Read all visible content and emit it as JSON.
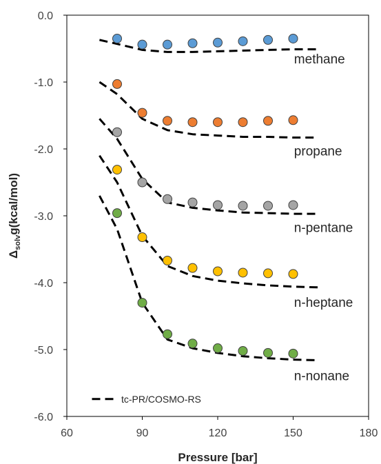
{
  "chart_data": {
    "type": "scatter",
    "xlabel": "Pressure [bar]",
    "ylabel": {
      "main": "Δ",
      "sub": "solv",
      "rest": "g(kcal/mol)"
    },
    "xlim": [
      60,
      180
    ],
    "ylim": [
      -6.0,
      0.0
    ],
    "x_ticks": [
      60,
      90,
      120,
      150,
      180
    ],
    "y_ticks": [
      0.0,
      -1.0,
      -2.0,
      -3.0,
      -4.0,
      -5.0,
      -6.0
    ],
    "x_tick_labels": [
      "60",
      "90",
      "120",
      "150",
      "180"
    ],
    "y_tick_labels": [
      "0.0",
      "-1.0",
      "-2.0",
      "-3.0",
      "-4.0",
      "-5.0",
      "-6.0"
    ],
    "grid": false,
    "legend": {
      "placement": "bottom-left",
      "entries": [
        {
          "label": "tc-PR/COSMO-RS",
          "style": "dashed-line"
        }
      ]
    },
    "model_line_color": "#000000",
    "marker_edge_color": "#404040",
    "series": [
      {
        "name": "methane",
        "color": "#5B9BD5",
        "points": {
          "x": [
            80,
            90,
            100,
            110,
            120,
            130,
            140,
            150
          ],
          "y": [
            -0.35,
            -0.44,
            -0.44,
            -0.42,
            -0.41,
            -0.39,
            -0.37,
            -0.35
          ]
        },
        "model": {
          "x": [
            73,
            80,
            90,
            100,
            110,
            120,
            130,
            140,
            150,
            160
          ],
          "y": [
            -0.37,
            -0.43,
            -0.52,
            -0.55,
            -0.55,
            -0.54,
            -0.53,
            -0.52,
            -0.51,
            -0.51
          ]
        }
      },
      {
        "name": "propane",
        "color": "#ED7D31",
        "points": {
          "x": [
            80,
            90,
            100,
            110,
            120,
            130,
            140,
            150
          ],
          "y": [
            -1.03,
            -1.46,
            -1.58,
            -1.6,
            -1.6,
            -1.6,
            -1.58,
            -1.57
          ]
        },
        "model": {
          "x": [
            73,
            80,
            90,
            100,
            110,
            120,
            130,
            140,
            150,
            160
          ],
          "y": [
            -1.0,
            -1.18,
            -1.55,
            -1.72,
            -1.78,
            -1.8,
            -1.82,
            -1.82,
            -1.83,
            -1.83
          ]
        }
      },
      {
        "name": "n-pentane",
        "color": "#A5A5A5",
        "points": {
          "x": [
            80,
            90,
            100,
            110,
            120,
            130,
            140,
            150
          ],
          "y": [
            -1.75,
            -2.5,
            -2.75,
            -2.8,
            -2.84,
            -2.85,
            -2.85,
            -2.84
          ]
        },
        "model": {
          "x": [
            73,
            80,
            90,
            100,
            110,
            120,
            130,
            140,
            150,
            160
          ],
          "y": [
            -1.55,
            -1.85,
            -2.45,
            -2.8,
            -2.88,
            -2.92,
            -2.95,
            -2.96,
            -2.97,
            -2.97
          ]
        }
      },
      {
        "name": "n-heptane",
        "color": "#FFC000",
        "points": {
          "x": [
            80,
            90,
            100,
            110,
            120,
            130,
            140,
            150
          ],
          "y": [
            -2.31,
            -3.32,
            -3.67,
            -3.78,
            -3.83,
            -3.85,
            -3.86,
            -3.87
          ]
        },
        "model": {
          "x": [
            73,
            80,
            90,
            100,
            110,
            120,
            130,
            140,
            150,
            160
          ],
          "y": [
            -2.1,
            -2.5,
            -3.3,
            -3.75,
            -3.9,
            -3.97,
            -4.01,
            -4.04,
            -4.06,
            -4.07
          ]
        }
      },
      {
        "name": "n-nonane",
        "color": "#70AD47",
        "points": {
          "x": [
            80,
            90,
            100,
            110,
            120,
            130,
            140,
            150
          ],
          "y": [
            -2.96,
            -4.3,
            -4.77,
            -4.91,
            -4.98,
            -5.02,
            -5.05,
            -5.06
          ]
        },
        "model": {
          "x": [
            73,
            80,
            90,
            100,
            110,
            120,
            130,
            140,
            150,
            160
          ],
          "y": [
            -2.7,
            -3.2,
            -4.3,
            -4.85,
            -4.98,
            -5.05,
            -5.1,
            -5.13,
            -5.15,
            -5.16
          ]
        }
      }
    ],
    "series_labels": [
      {
        "text": "methane",
        "x": 152,
        "y": -0.72
      },
      {
        "text": "propane",
        "x": 152,
        "y": -2.1
      },
      {
        "text": "n-pentane",
        "x": 152,
        "y": -3.24
      },
      {
        "text": "n-heptane",
        "x": 152,
        "y": -4.36
      },
      {
        "text": "n-nonane",
        "x": 152,
        "y": -5.46
      }
    ]
  }
}
